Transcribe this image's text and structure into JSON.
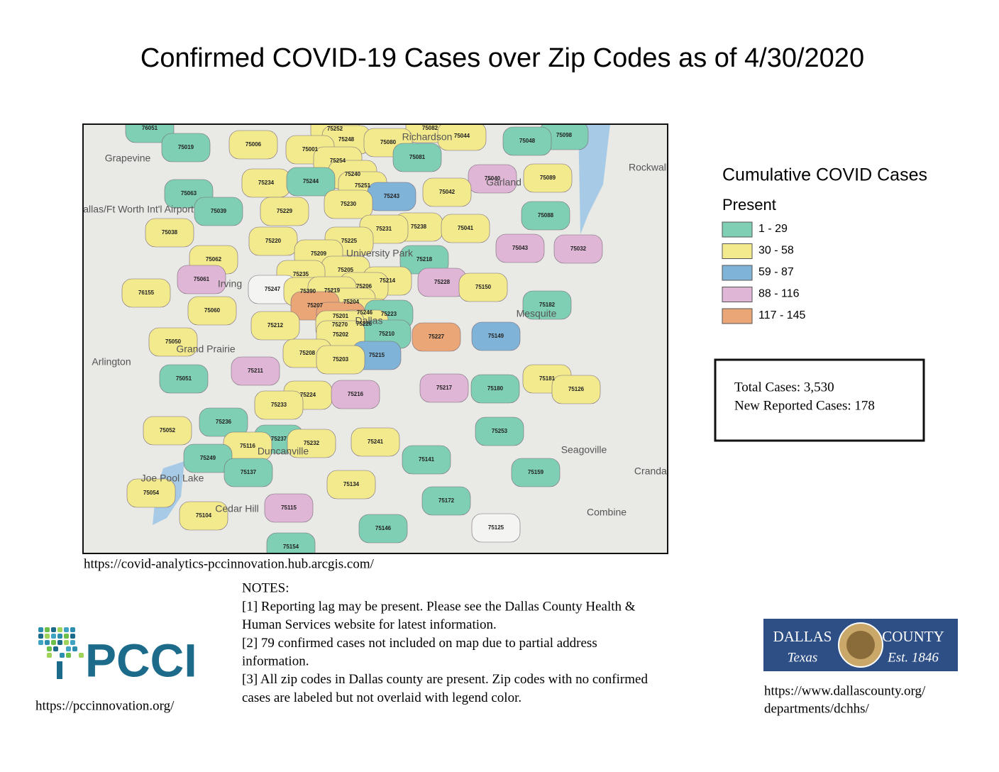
{
  "header": {
    "title": "Confirmed COVID-19 Cases over Zip Codes as of 4/30/2020"
  },
  "map": {
    "source": "https://covid-analytics-pccinnovation.hub.arcgis.com/",
    "places": [
      "Grapevine",
      "Irving",
      "Arlington",
      "Grand Prairie",
      "Garland",
      "Mesquite",
      "Richardson",
      "Rockwall",
      "Seagoville",
      "Combine",
      "Cedar Hill",
      "Duncanville",
      "University Park",
      "Dallas",
      "Dallas/Ft Worth Int'l Airport",
      "Joe Pool Lake",
      "Crandall"
    ],
    "zips": [
      {
        "label": "76051",
        "class": 0
      },
      {
        "label": "75019",
        "class": 0
      },
      {
        "label": "75006",
        "class": 1
      },
      {
        "label": "75252",
        "class": 1
      },
      {
        "label": "75082",
        "class": 1
      },
      {
        "label": "75044",
        "class": 1
      },
      {
        "label": "75098",
        "class": 0
      },
      {
        "label": "75048",
        "class": 0
      },
      {
        "label": "75248",
        "class": 1
      },
      {
        "label": "75080",
        "class": 1
      },
      {
        "label": "75001",
        "class": 1
      },
      {
        "label": "75081",
        "class": 0
      },
      {
        "label": "75254",
        "class": 1
      },
      {
        "label": "75240",
        "class": 1
      },
      {
        "label": "75040",
        "class": 3
      },
      {
        "label": "75089",
        "class": 1
      },
      {
        "label": "75234",
        "class": 1
      },
      {
        "label": "75244",
        "class": 0
      },
      {
        "label": "75251",
        "class": 1
      },
      {
        "label": "75243",
        "class": 2
      },
      {
        "label": "75042",
        "class": 1
      },
      {
        "label": "75063",
        "class": 0
      },
      {
        "label": "75230",
        "class": 1
      },
      {
        "label": "75229",
        "class": 1
      },
      {
        "label": "75039",
        "class": 0
      },
      {
        "label": "75088",
        "class": 0
      },
      {
        "label": "75238",
        "class": 1
      },
      {
        "label": "75231",
        "class": 1
      },
      {
        "label": "75041",
        "class": 1
      },
      {
        "label": "75038",
        "class": 1
      },
      {
        "label": "75220",
        "class": 1
      },
      {
        "label": "75225",
        "class": 1
      },
      {
        "label": "75043",
        "class": 3
      },
      {
        "label": "75032",
        "class": 3
      },
      {
        "label": "75209",
        "class": 1
      },
      {
        "label": "75062",
        "class": 1
      },
      {
        "label": "75218",
        "class": 0
      },
      {
        "label": "75205",
        "class": 1
      },
      {
        "label": "75235",
        "class": 1
      },
      {
        "label": "75061",
        "class": 3
      },
      {
        "label": "75214",
        "class": 1
      },
      {
        "label": "75228",
        "class": 3
      },
      {
        "label": "75150",
        "class": 1
      },
      {
        "label": "75206",
        "class": 1
      },
      {
        "label": "75247",
        "class": null
      },
      {
        "label": "75390",
        "class": 1
      },
      {
        "label": "75219",
        "class": 1
      },
      {
        "label": "76155",
        "class": 1
      },
      {
        "label": "75204",
        "class": 1
      },
      {
        "label": "75182",
        "class": 0
      },
      {
        "label": "75207",
        "class": 4
      },
      {
        "label": "75060",
        "class": 1
      },
      {
        "label": "75246",
        "class": 1
      },
      {
        "label": "75223",
        "class": 0
      },
      {
        "label": "75201",
        "class": 4
      },
      {
        "label": "75226",
        "class": 1
      },
      {
        "label": "75270",
        "class": 1
      },
      {
        "label": "75212",
        "class": 1
      },
      {
        "label": "75149",
        "class": 2
      },
      {
        "label": "75227",
        "class": 4
      },
      {
        "label": "75210",
        "class": 0
      },
      {
        "label": "75202",
        "class": 1
      },
      {
        "label": "75050",
        "class": 1
      },
      {
        "label": "75208",
        "class": 1
      },
      {
        "label": "75215",
        "class": 2
      },
      {
        "label": "75203",
        "class": 1
      },
      {
        "label": "75211",
        "class": 3
      },
      {
        "label": "75051",
        "class": 0
      },
      {
        "label": "75181",
        "class": 1
      },
      {
        "label": "75126",
        "class": 1
      },
      {
        "label": "75217",
        "class": 3
      },
      {
        "label": "75180",
        "class": 0
      },
      {
        "label": "75224",
        "class": 1
      },
      {
        "label": "75216",
        "class": 3
      },
      {
        "label": "75233",
        "class": 1
      },
      {
        "label": "75236",
        "class": 0
      },
      {
        "label": "75052",
        "class": 1
      },
      {
        "label": "75253",
        "class": 0
      },
      {
        "label": "75237",
        "class": 0
      },
      {
        "label": "75241",
        "class": 1
      },
      {
        "label": "75232",
        "class": 1
      },
      {
        "label": "75116",
        "class": 1
      },
      {
        "label": "75249",
        "class": 0
      },
      {
        "label": "75141",
        "class": 0
      },
      {
        "label": "75137",
        "class": 0
      },
      {
        "label": "75159",
        "class": 0
      },
      {
        "label": "75134",
        "class": 1
      },
      {
        "label": "75054",
        "class": 1
      },
      {
        "label": "75172",
        "class": 0
      },
      {
        "label": "75115",
        "class": 3
      },
      {
        "label": "75104",
        "class": 1
      },
      {
        "label": "75125",
        "class": null
      },
      {
        "label": "75146",
        "class": 0
      },
      {
        "label": "75154",
        "class": 0
      }
    ]
  },
  "legend": {
    "title": "Cumulative COVID Cases",
    "subtitle": "Present",
    "items": [
      {
        "label": "1 - 29",
        "color": "#7ecfb3"
      },
      {
        "label": "30 - 58",
        "color": "#f3ea8e"
      },
      {
        "label": "59 - 87",
        "color": "#7fb3d8"
      },
      {
        "label": "88 - 116",
        "color": "#e0b6d6"
      },
      {
        "label": "117 - 145",
        "color": "#eaa676"
      }
    ]
  },
  "summary": {
    "total": "Total Cases: 3,530",
    "new": "New Reported Cases: 178"
  },
  "notes": {
    "heading": "NOTES:",
    "lines": [
      "[1] Reporting lag may be present. Please see the Dallas County Health &",
      "Human Services website for latest information.",
      "[2] 79 confirmed cases not included on map due to partial address",
      "information.",
      "[3] All zip codes in Dallas county are present. Zip codes with no confirmed",
      "cases are labeled but not overlaid with legend color."
    ]
  },
  "logos": {
    "pcci": "PCCI",
    "pcci_url": "https://pccinnovation.org/",
    "county_left": "DALLAS",
    "county_right": "COUNTY",
    "county_state": "Texas",
    "county_est": "Est. 1846",
    "county_url_1": "https://www.dallascounty.org/",
    "county_url_2": "departments/dchhs/"
  }
}
